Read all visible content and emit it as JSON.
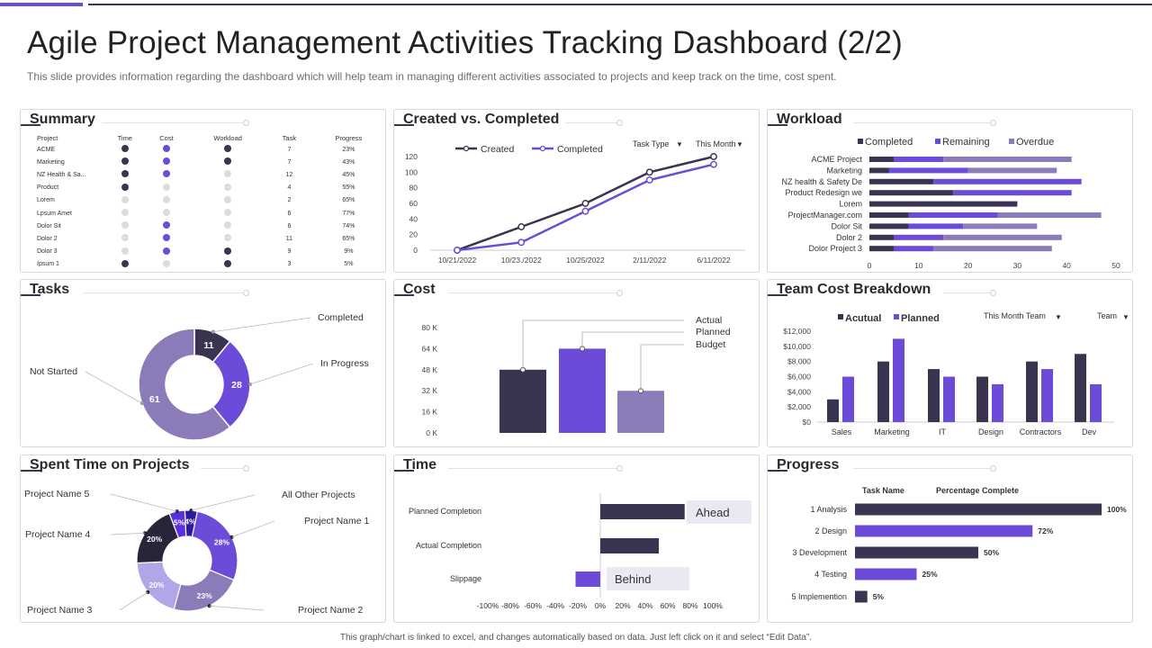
{
  "header": {
    "title": "Agile Project Management Activities Tracking Dashboard (2/2)",
    "subtitle": "This slide provides information regarding the dashboard which will help team in managing different activities associated to projects and keep track on the time, cost spent."
  },
  "footer": "This graph/chart is linked to excel, and changes automatically based on data. Just left click on it and select “Edit Data”.",
  "colors": {
    "dark": "#3a3450",
    "purple": "#6c4bd8",
    "lavender": "#8b7bb8",
    "light": "#dcdcdc"
  },
  "summary": {
    "title": "Summary",
    "columns": [
      "Project",
      "Time",
      "Cost",
      "Workload",
      "Task",
      "Progress"
    ],
    "rows": [
      {
        "project": "ACME",
        "time": "dark",
        "cost": "purple",
        "workload": "dark",
        "task": "7",
        "progress": "23%"
      },
      {
        "project": "Marketing",
        "time": "dark",
        "cost": "purple",
        "workload": "dark",
        "task": "7",
        "progress": "43%"
      },
      {
        "project": "NZ Health & Sa...",
        "time": "dark",
        "cost": "purple",
        "workload": "light",
        "task": "12",
        "progress": "45%"
      },
      {
        "project": "Product",
        "time": "dark",
        "cost": "light",
        "workload": "light",
        "task": "4",
        "progress": "55%"
      },
      {
        "project": "Lorem",
        "time": "light",
        "cost": "light",
        "workload": "light",
        "task": "2",
        "progress": "65%"
      },
      {
        "project": "Lpsum Amet",
        "time": "light",
        "cost": "light",
        "workload": "light",
        "task": "6",
        "progress": "77%"
      },
      {
        "project": "Dolor Sit",
        "time": "light",
        "cost": "purple",
        "workload": "light",
        "task": "6",
        "progress": "74%"
      },
      {
        "project": "Dolor 2",
        "time": "light",
        "cost": "purple",
        "workload": "light",
        "task": "11",
        "progress": "65%"
      },
      {
        "project": "Dolor 3",
        "time": "light",
        "cost": "purple",
        "workload": "dark",
        "task": "9",
        "progress": "9%"
      },
      {
        "project": "Ipsum 1",
        "time": "dark",
        "cost": "light",
        "workload": "dark",
        "task": "3",
        "progress": "5%"
      }
    ]
  },
  "panels": {
    "created": "Created vs. Completed",
    "workload": "Workload",
    "tasks": "Tasks",
    "cost": "Cost",
    "team": "Team Cost Breakdown",
    "spent": "Spent Time on Projects",
    "time": "Time",
    "progress": "Progress"
  },
  "filters": {
    "task_type": "Task Type",
    "this_month": "This Month",
    "this_month_team": "This Month Team",
    "team": "Team"
  },
  "chart_data": [
    {
      "id": "created_vs_completed",
      "type": "line",
      "categories": [
        "10/21/2022",
        "10/23/2022",
        "10/25/2022",
        "2/11/2022",
        "6/11/2022"
      ],
      "category_labels": [
        "10/21/2022",
        "10/23./2022",
        "10/25/2022",
        "2/11/2022",
        "6/11/2022"
      ],
      "series": [
        {
          "name": "Created",
          "values": [
            0,
            30,
            60,
            100,
            120
          ]
        },
        {
          "name": "Completed",
          "values": [
            0,
            10,
            50,
            90,
            110
          ]
        }
      ],
      "ylim": [
        0,
        120
      ],
      "yticks": [
        0,
        20,
        40,
        60,
        80,
        100,
        120
      ],
      "legend": "top"
    },
    {
      "id": "workload",
      "type": "bar",
      "orientation": "horizontal",
      "stacked": true,
      "categories": [
        "ACME Project",
        "Marketing",
        "NZ health & Safety De",
        "Product Redesign we",
        "Lorem",
        "ProjectManager.com",
        "Dolor Sit",
        "Dolor 2",
        "Dolor Project 3"
      ],
      "series": [
        {
          "name": "Completed",
          "values": [
            5,
            4,
            13,
            17,
            30,
            8,
            8,
            5,
            5
          ]
        },
        {
          "name": "Remaining",
          "values": [
            10,
            16,
            30,
            24,
            0,
            18,
            11,
            10,
            8
          ]
        },
        {
          "name": "Overdue",
          "values": [
            26,
            18,
            0,
            0,
            0,
            21,
            15,
            24,
            24
          ]
        }
      ],
      "xlim": [
        0,
        50
      ],
      "xticks": [
        0,
        10,
        20,
        30,
        40,
        50
      ],
      "legend": "top"
    },
    {
      "id": "tasks",
      "type": "pie",
      "donut": true,
      "labels": [
        "Completed",
        "In Progress",
        "Not Started"
      ],
      "values": [
        11,
        28,
        61
      ]
    },
    {
      "id": "cost",
      "type": "bar",
      "categories": [
        "Actual",
        "Planned",
        "Budget"
      ],
      "values": [
        48,
        64,
        32
      ],
      "ylim": [
        0,
        80
      ],
      "yticks": [
        "0 K",
        "16 K",
        "32 K",
        "48 K",
        "64 K",
        "80 K"
      ]
    },
    {
      "id": "team_cost",
      "type": "bar",
      "categories": [
        "Sales",
        "Marketing",
        "IT",
        "Design",
        "Contractors",
        "Dev"
      ],
      "series": [
        {
          "name": "Acutual",
          "values": [
            3000,
            8000,
            7000,
            6000,
            8000,
            9000
          ]
        },
        {
          "name": "Planned",
          "values": [
            6000,
            11000,
            6000,
            5000,
            7000,
            5000
          ]
        }
      ],
      "ylim": [
        0,
        12000
      ],
      "yticks": [
        "$0",
        "$2,000",
        "$4,000",
        "$6,000",
        "$8,000",
        "$10,000",
        "$12,000"
      ],
      "legend": "top-left"
    },
    {
      "id": "spent_time",
      "type": "pie",
      "donut": true,
      "labels": [
        "All Other Projects",
        "Project Name 1",
        "Project Name 2",
        "Project Name 3",
        "Project Name 4",
        "Project Name 5"
      ],
      "values": [
        4,
        28,
        23,
        20,
        20,
        5
      ],
      "value_labels": [
        "4%",
        "28%",
        "23%",
        "20%",
        "20%",
        "5%"
      ]
    },
    {
      "id": "time",
      "type": "bar",
      "orientation": "horizontal",
      "categories": [
        "Planned Completion",
        "Actual Completion",
        "Slippage"
      ],
      "values": [
        75,
        52,
        -22
      ],
      "xlim": [
        -100,
        100
      ],
      "xticks": [
        "-100%",
        "-80%",
        "-60%",
        "-40%",
        "-20%",
        "0%",
        "20%",
        "40%",
        "60%",
        "80%",
        "100%"
      ],
      "annotations": [
        "Ahead",
        "Behind"
      ]
    },
    {
      "id": "progress",
      "type": "bar",
      "orientation": "horizontal",
      "columns": [
        "Task Name",
        "Percentage Complete"
      ],
      "categories": [
        "1 Analysis",
        "2 Design",
        "3 Development",
        "4 Testing",
        "5 Implemention"
      ],
      "values": [
        100,
        72,
        50,
        25,
        5
      ],
      "value_labels": [
        "100%",
        "72%",
        "50%",
        "25%",
        "5%"
      ],
      "xlim": [
        0,
        100
      ]
    }
  ]
}
